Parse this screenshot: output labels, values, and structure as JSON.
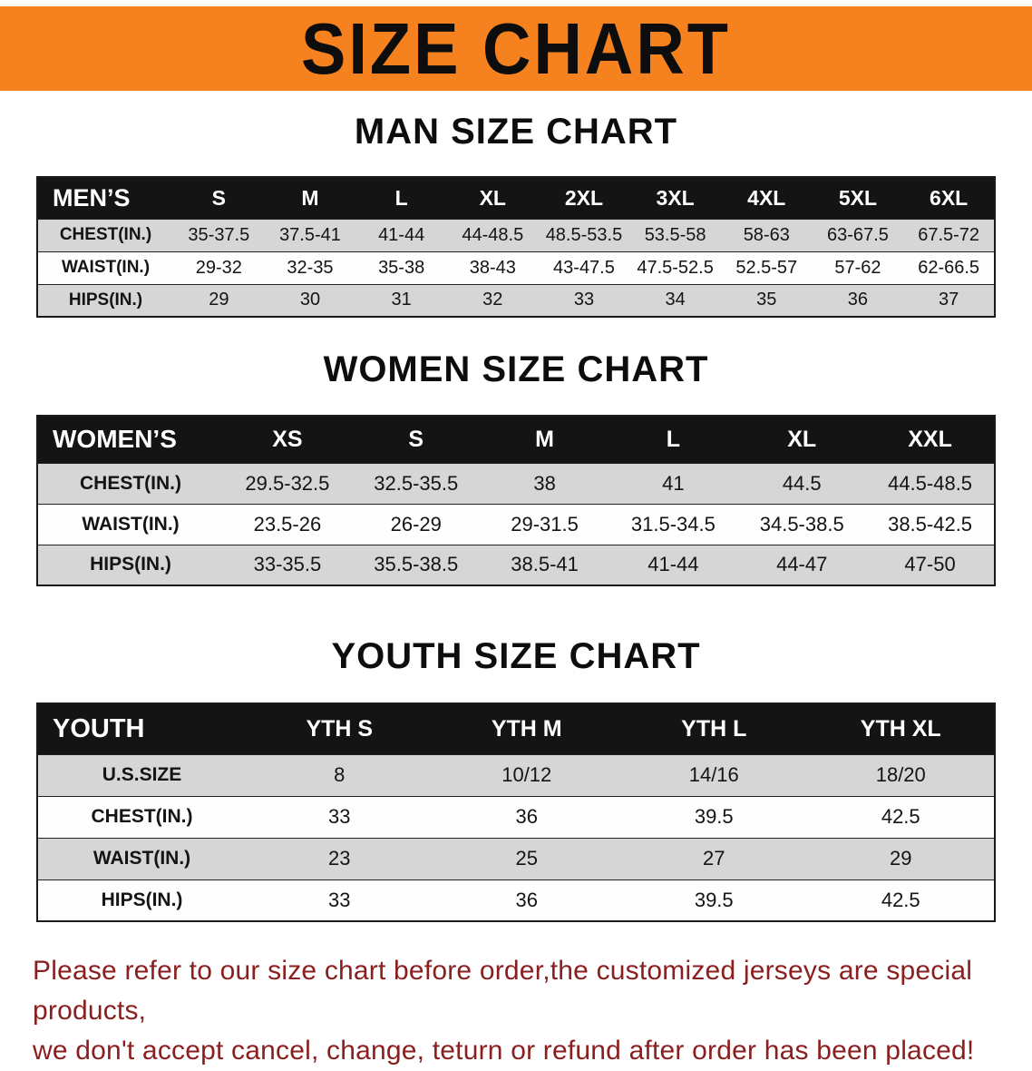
{
  "banner": {
    "title": "SIZE CHART",
    "bg_color": "#F5821F"
  },
  "sections": [
    {
      "id": "men",
      "title": "MAN SIZE CHART",
      "header_label": "MEN’S",
      "columns": [
        "S",
        "M",
        "L",
        "XL",
        "2XL",
        "3XL",
        "4XL",
        "5XL",
        "6XL"
      ],
      "rows": [
        {
          "label": "CHEST(IN.)",
          "values": [
            "35-37.5",
            "37.5-41",
            "41-44",
            "44-48.5",
            "48.5-53.5",
            "53.5-58",
            "58-63",
            "63-67.5",
            "67.5-72"
          ]
        },
        {
          "label": "WAIST(IN.)",
          "values": [
            "29-32",
            "32-35",
            "35-38",
            "38-43",
            "43-47.5",
            "47.5-52.5",
            "52.5-57",
            "57-62",
            "62-66.5"
          ]
        },
        {
          "label": "HIPS(IN.)",
          "values": [
            "29",
            "30",
            "31",
            "32",
            "33",
            "34",
            "35",
            "36",
            "37"
          ]
        }
      ]
    },
    {
      "id": "women",
      "title": "WOMEN SIZE CHART",
      "header_label": "WOMEN’S",
      "columns": [
        "XS",
        "S",
        "M",
        "L",
        "XL",
        "XXL"
      ],
      "rows": [
        {
          "label": "CHEST(IN.)",
          "values": [
            "29.5-32.5",
            "32.5-35.5",
            "38",
            "41",
            "44.5",
            "44.5-48.5"
          ]
        },
        {
          "label": "WAIST(IN.)",
          "values": [
            "23.5-26",
            "26-29",
            "29-31.5",
            "31.5-34.5",
            "34.5-38.5",
            "38.5-42.5"
          ]
        },
        {
          "label": "HIPS(IN.)",
          "values": [
            "33-35.5",
            "35.5-38.5",
            "38.5-41",
            "41-44",
            "44-47",
            "47-50"
          ]
        }
      ]
    },
    {
      "id": "youth",
      "title": "YOUTH SIZE CHART",
      "header_label": "YOUTH",
      "columns": [
        "YTH S",
        "YTH M",
        "YTH L",
        "YTH XL"
      ],
      "rows": [
        {
          "label": "U.S.SIZE",
          "values": [
            "8",
            "10/12",
            "14/16",
            "18/20"
          ]
        },
        {
          "label": "CHEST(IN.)",
          "values": [
            "33",
            "36",
            "39.5",
            "42.5"
          ]
        },
        {
          "label": "WAIST(IN.)",
          "values": [
            "23",
            "25",
            "27",
            "29"
          ]
        },
        {
          "label": "HIPS(IN.)",
          "values": [
            "33",
            "36",
            "39.5",
            "42.5"
          ]
        }
      ]
    }
  ],
  "footer": {
    "text_color": "#8B1E1E",
    "line1": "Please refer to our size chart before order,the customized jerseys are special products,",
    "line2": "we don't accept cancel, change, teturn or refund after order has been placed!"
  }
}
